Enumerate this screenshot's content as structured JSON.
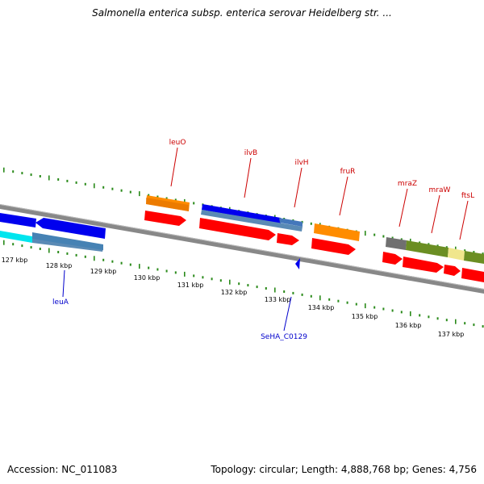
{
  "header": {
    "title": "Salmonella enterica subsp. enterica serovar Heidelberg str. ..."
  },
  "footer": {
    "accession": "Accession: NC_011083",
    "summary": "Topology: circular; Length: 4,888,768 bp; Genes: 4,756"
  },
  "colors": {
    "backbone": "#888888",
    "tick": "#2a8a1a",
    "forward_label": "#cc0000",
    "reverse_label": "#0000cc"
  },
  "ticks": [
    {
      "label": "127 kbp"
    },
    {
      "label": "128 kbp"
    },
    {
      "label": "129 kbp"
    },
    {
      "label": "130 kbp"
    },
    {
      "label": "131 kbp"
    },
    {
      "label": "132 kbp"
    },
    {
      "label": "133 kbp"
    },
    {
      "label": "134 kbp"
    },
    {
      "label": "135 kbp"
    },
    {
      "label": "136 kbp"
    },
    {
      "label": "137 kbp"
    }
  ],
  "gene_labels": [
    {
      "text": "leuO",
      "strand": "forward"
    },
    {
      "text": "ilvB",
      "strand": "forward"
    },
    {
      "text": "ilvH",
      "strand": "forward"
    },
    {
      "text": "fruR",
      "strand": "forward"
    },
    {
      "text": "mraZ",
      "strand": "forward"
    },
    {
      "text": "mraW",
      "strand": "forward"
    },
    {
      "text": "ftsL",
      "strand": "forward"
    },
    {
      "text": "leuA",
      "strand": "reverse"
    },
    {
      "text": "SeHA_C0129",
      "strand": "reverse"
    }
  ]
}
